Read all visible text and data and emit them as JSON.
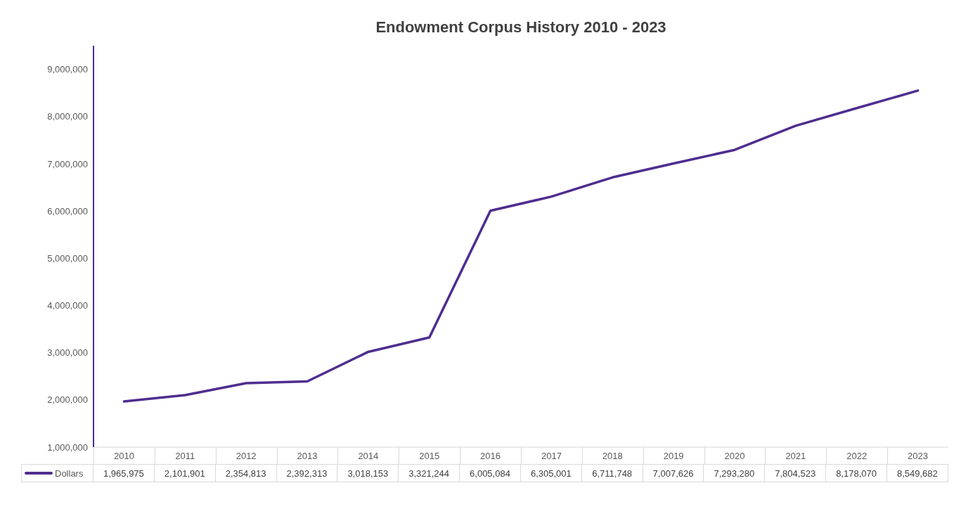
{
  "chart_data": {
    "type": "line",
    "title": "Endowment Corpus History 2010 - 2023",
    "categories": [
      "2010",
      "2011",
      "2012",
      "2013",
      "2014",
      "2015",
      "2016",
      "2017",
      "2018",
      "2019",
      "2020",
      "2021",
      "2022",
      "2023"
    ],
    "series": [
      {
        "name": "Dollars",
        "color": "#4f2d8f",
        "values": [
          1965975,
          2101901,
          2354813,
          2392313,
          3018153,
          3321244,
          6005084,
          6305001,
          6711748,
          7007626,
          7293280,
          7804523,
          8178070,
          8549682
        ],
        "value_labels": [
          "1,965,975",
          "2,101,901",
          "2,354,813",
          "2,392,313",
          "3,018,153",
          "3,321,244",
          "6,005,084",
          "6,305,001",
          "6,711,748",
          "7,007,626",
          "7,293,280",
          "7,804,523",
          "8,178,070",
          "8,549,682"
        ]
      }
    ],
    "ylim": [
      1000000,
      9500000
    ],
    "yticks": [
      {
        "value": 1000000,
        "label": "1,000,000"
      },
      {
        "value": 2000000,
        "label": "2,000,000"
      },
      {
        "value": 3000000,
        "label": "3,000,000"
      },
      {
        "value": 4000000,
        "label": "4,000,000"
      },
      {
        "value": 5000000,
        "label": "5,000,000"
      },
      {
        "value": 6000000,
        "label": "6,000,000"
      },
      {
        "value": 7000000,
        "label": "7,000,000"
      },
      {
        "value": 8000000,
        "label": "8,000,000"
      },
      {
        "value": 9000000,
        "label": "9,000,000"
      }
    ],
    "grid": false,
    "legend": "bottom"
  }
}
